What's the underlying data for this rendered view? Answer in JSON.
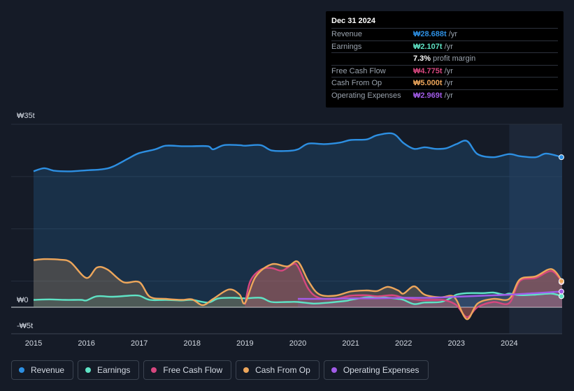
{
  "chart_data": {
    "type": "area",
    "y_axis": {
      "top_label": "₩35t",
      "zero_label": "₩0",
      "bottom_label": "-₩5t",
      "ylim": [
        -5,
        35
      ]
    },
    "x_ticks": [
      "2015",
      "2016",
      "2017",
      "2018",
      "2019",
      "2020",
      "2021",
      "2022",
      "2023",
      "2024"
    ],
    "series": [
      {
        "name": "Revenue",
        "color": "#2d8fe2",
        "fill": "rgba(45,143,226,0.18)",
        "points": [
          [
            2015.0,
            26.0
          ],
          [
            2015.2,
            26.6
          ],
          [
            2015.4,
            26.1
          ],
          [
            2015.7,
            26.0
          ],
          [
            2016.0,
            26.2
          ],
          [
            2016.3,
            26.4
          ],
          [
            2016.5,
            26.9
          ],
          [
            2016.8,
            28.5
          ],
          [
            2017.0,
            29.5
          ],
          [
            2017.3,
            30.2
          ],
          [
            2017.5,
            30.9
          ],
          [
            2017.8,
            30.8
          ],
          [
            2018.0,
            30.8
          ],
          [
            2018.3,
            30.8
          ],
          [
            2018.4,
            30.2
          ],
          [
            2018.6,
            31.0
          ],
          [
            2018.9,
            31.0
          ],
          [
            2019.0,
            30.9
          ],
          [
            2019.3,
            31.0
          ],
          [
            2019.5,
            30.0
          ],
          [
            2019.8,
            29.9
          ],
          [
            2020.0,
            30.2
          ],
          [
            2020.2,
            31.3
          ],
          [
            2020.5,
            31.2
          ],
          [
            2020.8,
            31.5
          ],
          [
            2021.0,
            32.0
          ],
          [
            2021.3,
            32.1
          ],
          [
            2021.5,
            32.9
          ],
          [
            2021.8,
            33.2
          ],
          [
            2022.0,
            31.4
          ],
          [
            2022.2,
            30.3
          ],
          [
            2022.4,
            30.6
          ],
          [
            2022.6,
            30.3
          ],
          [
            2022.8,
            30.4
          ],
          [
            2023.0,
            31.2
          ],
          [
            2023.2,
            31.8
          ],
          [
            2023.4,
            29.3
          ],
          [
            2023.7,
            28.7
          ],
          [
            2024.0,
            29.3
          ],
          [
            2024.2,
            28.9
          ],
          [
            2024.5,
            28.7
          ],
          [
            2024.7,
            29.4
          ],
          [
            2025.0,
            28.7
          ]
        ]
      },
      {
        "name": "Earnings",
        "color": "#5fe3c5",
        "fill": "rgba(95,227,197,0.12)",
        "points": [
          [
            2015.0,
            1.4
          ],
          [
            2015.3,
            1.5
          ],
          [
            2015.6,
            1.4
          ],
          [
            2015.9,
            1.4
          ],
          [
            2016.0,
            1.3
          ],
          [
            2016.2,
            2.1
          ],
          [
            2016.5,
            2.0
          ],
          [
            2016.8,
            2.2
          ],
          [
            2017.0,
            2.2
          ],
          [
            2017.2,
            1.4
          ],
          [
            2017.5,
            1.4
          ],
          [
            2017.8,
            1.3
          ],
          [
            2018.0,
            1.4
          ],
          [
            2018.3,
            0.9
          ],
          [
            2018.5,
            1.7
          ],
          [
            2018.8,
            1.8
          ],
          [
            2019.0,
            1.7
          ],
          [
            2019.3,
            1.8
          ],
          [
            2019.5,
            1.0
          ],
          [
            2019.8,
            1.0
          ],
          [
            2020.0,
            1.0
          ],
          [
            2020.3,
            0.7
          ],
          [
            2020.6,
            0.9
          ],
          [
            2020.9,
            1.2
          ],
          [
            2021.0,
            1.4
          ],
          [
            2021.3,
            1.9
          ],
          [
            2021.6,
            1.9
          ],
          [
            2021.9,
            1.6
          ],
          [
            2022.0,
            1.4
          ],
          [
            2022.2,
            0.6
          ],
          [
            2022.4,
            0.9
          ],
          [
            2022.7,
            1.0
          ],
          [
            2022.9,
            1.8
          ],
          [
            2023.0,
            2.4
          ],
          [
            2023.2,
            2.7
          ],
          [
            2023.5,
            2.7
          ],
          [
            2023.7,
            2.8
          ],
          [
            2023.9,
            2.4
          ],
          [
            2024.0,
            2.6
          ],
          [
            2024.2,
            2.3
          ],
          [
            2024.5,
            2.4
          ],
          [
            2024.8,
            2.6
          ],
          [
            2025.0,
            2.1
          ]
        ]
      },
      {
        "name": "Free Cash Flow",
        "color": "#d7477f",
        "fill": "rgba(215,71,127,0.28)",
        "points": [
          [
            2019.0,
            0.5
          ],
          [
            2019.1,
            5.0
          ],
          [
            2019.3,
            7.2
          ],
          [
            2019.5,
            7.5
          ],
          [
            2019.7,
            7.0
          ],
          [
            2019.9,
            8.2
          ],
          [
            2020.0,
            7.8
          ],
          [
            2020.2,
            3.5
          ],
          [
            2020.4,
            1.8
          ],
          [
            2020.7,
            1.6
          ],
          [
            2021.0,
            2.2
          ],
          [
            2021.3,
            2.3
          ],
          [
            2021.5,
            2.1
          ],
          [
            2021.8,
            2.3
          ],
          [
            2022.0,
            1.8
          ],
          [
            2022.3,
            1.4
          ],
          [
            2022.6,
            1.4
          ],
          [
            2022.8,
            1.3
          ],
          [
            2023.0,
            0.4
          ],
          [
            2023.2,
            -1.9
          ],
          [
            2023.4,
            0.0
          ],
          [
            2023.7,
            1.0
          ],
          [
            2024.0,
            0.8
          ],
          [
            2024.2,
            5.0
          ],
          [
            2024.5,
            5.6
          ],
          [
            2024.8,
            6.9
          ],
          [
            2025.0,
            4.8
          ]
        ]
      },
      {
        "name": "Cash From Op",
        "color": "#eda65b",
        "fill": "rgba(237,166,91,0.22)",
        "points": [
          [
            2015.0,
            9.0
          ],
          [
            2015.2,
            9.2
          ],
          [
            2015.5,
            9.1
          ],
          [
            2015.7,
            8.6
          ],
          [
            2016.0,
            5.6
          ],
          [
            2016.2,
            7.6
          ],
          [
            2016.4,
            7.2
          ],
          [
            2016.7,
            4.8
          ],
          [
            2017.0,
            4.8
          ],
          [
            2017.2,
            2.0
          ],
          [
            2017.5,
            1.6
          ],
          [
            2017.8,
            1.4
          ],
          [
            2018.0,
            1.5
          ],
          [
            2018.2,
            0.4
          ],
          [
            2018.4,
            1.6
          ],
          [
            2018.7,
            3.4
          ],
          [
            2018.9,
            2.4
          ],
          [
            2019.0,
            0.8
          ],
          [
            2019.2,
            5.8
          ],
          [
            2019.5,
            8.2
          ],
          [
            2019.8,
            7.8
          ],
          [
            2020.0,
            8.7
          ],
          [
            2020.2,
            5.0
          ],
          [
            2020.4,
            2.5
          ],
          [
            2020.7,
            2.2
          ],
          [
            2021.0,
            3.0
          ],
          [
            2021.3,
            3.2
          ],
          [
            2021.5,
            3.1
          ],
          [
            2021.7,
            3.9
          ],
          [
            2021.9,
            3.2
          ],
          [
            2022.0,
            2.6
          ],
          [
            2022.2,
            4.0
          ],
          [
            2022.4,
            2.4
          ],
          [
            2022.7,
            1.9
          ],
          [
            2022.9,
            2.2
          ],
          [
            2023.0,
            1.4
          ],
          [
            2023.2,
            -2.3
          ],
          [
            2023.4,
            0.7
          ],
          [
            2023.7,
            1.6
          ],
          [
            2024.0,
            1.6
          ],
          [
            2024.2,
            5.3
          ],
          [
            2024.5,
            5.9
          ],
          [
            2024.8,
            7.3
          ],
          [
            2025.0,
            5.0
          ]
        ]
      },
      {
        "name": "Operating Expenses",
        "color": "#a25ce8",
        "fill": "rgba(162,92,232,0.12)",
        "points": [
          [
            2020.0,
            1.6
          ],
          [
            2020.5,
            1.6
          ],
          [
            2021.0,
            1.7
          ],
          [
            2021.5,
            1.7
          ],
          [
            2022.0,
            1.8
          ],
          [
            2022.5,
            1.8
          ],
          [
            2023.0,
            2.0
          ],
          [
            2023.5,
            2.2
          ],
          [
            2024.0,
            2.4
          ],
          [
            2024.5,
            2.7
          ],
          [
            2025.0,
            3.0
          ]
        ]
      }
    ],
    "highlight_from": 2024.0
  },
  "tooltip": {
    "date": "Dec 31 2024",
    "rows": [
      {
        "label": "Revenue",
        "value": "₩28.688t",
        "unit": " /yr",
        "color": "#2d8fe2"
      },
      {
        "label": "Earnings",
        "value": "₩2.107t",
        "unit": " /yr",
        "color": "#5fe3c5"
      },
      {
        "label": "",
        "value": "7.3%",
        "unit": " profit margin",
        "color": "#ffffff"
      },
      {
        "label": "Free Cash Flow",
        "value": "₩4.775t",
        "unit": " /yr",
        "color": "#d7477f"
      },
      {
        "label": "Cash From Op",
        "value": "₩5.000t",
        "unit": " /yr",
        "color": "#eda65b"
      },
      {
        "label": "Operating Expenses",
        "value": "₩2.969t",
        "unit": " /yr",
        "color": "#a25ce8"
      }
    ]
  },
  "legend": [
    {
      "label": "Revenue",
      "color": "#2d8fe2"
    },
    {
      "label": "Earnings",
      "color": "#5fe3c5"
    },
    {
      "label": "Free Cash Flow",
      "color": "#d7477f"
    },
    {
      "label": "Cash From Op",
      "color": "#eda65b"
    },
    {
      "label": "Operating Expenses",
      "color": "#a25ce8"
    }
  ]
}
